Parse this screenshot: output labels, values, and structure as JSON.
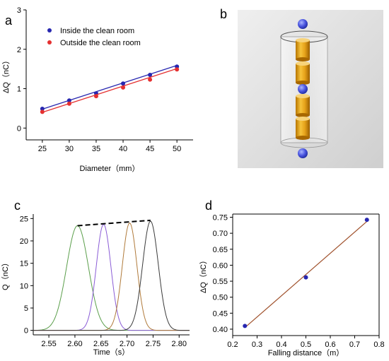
{
  "panels": {
    "a": {
      "letter": "a",
      "chart_data": {
        "type": "scatter",
        "xlabel": "Diameter（mm）",
        "ylabel": "ΔQ（nC）",
        "xlim": [
          22,
          53
        ],
        "ylim": [
          -0.3,
          3
        ],
        "xticks": [
          25,
          30,
          35,
          40,
          45,
          50
        ],
        "yticks": [
          0,
          1,
          2,
          3
        ],
        "legend_position": "top-left",
        "series": [
          {
            "name": "Inside the clean room",
            "color": "#2727b0",
            "x": [
              25,
              30,
              35,
              40,
              45,
              50
            ],
            "y": [
              0.49,
              0.7,
              0.88,
              1.13,
              1.35,
              1.56
            ],
            "fit": [
              0.48,
              1.59
            ]
          },
          {
            "name": "Outside the clean room",
            "color": "#e53030",
            "x": [
              25,
              30,
              35,
              40,
              45,
              50
            ],
            "y": [
              0.41,
              0.62,
              0.81,
              1.03,
              1.23,
              1.49
            ],
            "fit": [
              0.4,
              1.51
            ]
          }
        ]
      }
    },
    "b": {
      "letter": "b"
    },
    "c": {
      "letter": "c",
      "chart_data": {
        "type": "line",
        "xlabel": "Time（s）",
        "ylabel": "Q（nC）",
        "xlim": [
          2.52,
          2.82
        ],
        "ylim": [
          -1,
          26
        ],
        "xticks": [
          2.55,
          2.6,
          2.65,
          2.7,
          2.75,
          2.8
        ],
        "xtick_labels": [
          "2.55",
          "2.60",
          "2.65",
          "2.70",
          "2.75",
          "2.80"
        ],
        "yticks": [
          0,
          5,
          10,
          15,
          20,
          25
        ],
        "series": [
          {
            "color": "#5a9e4a",
            "peak_x": 2.605,
            "peak_y": 23.4,
            "width": 0.021
          },
          {
            "color": "#8a5cd6",
            "peak_x": 2.655,
            "peak_y": 23.7,
            "width": 0.014
          },
          {
            "color": "#b07a3a",
            "peak_x": 2.705,
            "peak_y": 24.0,
            "width": 0.014
          },
          {
            "color": "#3a3a3a",
            "peak_x": 2.745,
            "peak_y": 24.4,
            "width": 0.015
          }
        ],
        "trend_line": {
          "x": [
            2.605,
            2.745
          ],
          "y": [
            23.4,
            24.6
          ],
          "style": "dashed"
        }
      }
    },
    "d": {
      "letter": "d",
      "chart_data": {
        "type": "scatter",
        "xlabel": "Falling distance（m）",
        "ylabel": "ΔQ（nC）",
        "xlim": [
          0.2,
          0.8
        ],
        "ylim": [
          0.38,
          0.76
        ],
        "xticks": [
          0.2,
          0.3,
          0.4,
          0.5,
          0.6,
          0.7,
          0.8
        ],
        "yticks": [
          0.4,
          0.45,
          0.5,
          0.55,
          0.6,
          0.65,
          0.7,
          0.75
        ],
        "ytick_labels": [
          "0.40",
          "0.45",
          "0.50",
          "0.55",
          "0.60",
          "0.65",
          "0.70",
          "0.75"
        ],
        "series": [
          {
            "color": "#2727b0",
            "x": [
              0.25,
              0.5,
              0.75
            ],
            "y": [
              0.41,
              0.562,
              0.742
            ],
            "fit": {
              "x": [
                0.25,
                0.75
              ],
              "y": [
                0.405,
                0.737
              ],
              "color": "#a0522d"
            }
          }
        ]
      }
    }
  }
}
